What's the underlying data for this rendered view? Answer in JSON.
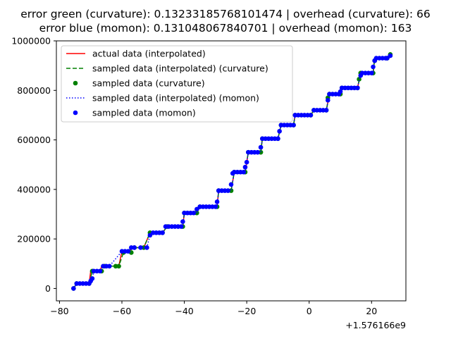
{
  "chart_data": {
    "type": "line",
    "title": "error green (curvature): 0.13233185768101474 | overhead (curvature): 66\nerror blue (momon): 0.131048067840701 | overhead (momon): 163",
    "title_lines": [
      "error green (curvature): 0.13233185768101474 | overhead (curvature): 66",
      "error blue (momon): 0.131048067840701 | overhead (momon): 163"
    ],
    "xlabel": "",
    "ylabel": "",
    "x_offset_label": "+1.576166e9",
    "xlim": [
      -81,
      31
    ],
    "ylim": [
      -50000,
      1000000
    ],
    "x_ticks": [
      -80,
      -60,
      -40,
      -20,
      0,
      20
    ],
    "x_tick_labels": [
      "−80",
      "−60",
      "−40",
      "−20",
      "0",
      "20"
    ],
    "y_ticks": [
      0,
      200000,
      400000,
      600000,
      800000,
      1000000
    ],
    "y_tick_labels": [
      "0",
      "200000",
      "400000",
      "600000",
      "800000",
      "1000000"
    ],
    "grid": false,
    "legend_position": "upper-left",
    "series": [
      {
        "name": "actual data (interpolated)",
        "style": "solid-line",
        "color": "#ff0000",
        "points": [
          [
            -75.5,
            0
          ],
          [
            -74.5,
            20000
          ],
          [
            -70.5,
            20000
          ],
          [
            -70,
            70000
          ],
          [
            -67,
            70000
          ],
          [
            -66.5,
            90000
          ],
          [
            -61,
            90000
          ],
          [
            -60,
            150000
          ],
          [
            -58,
            150000
          ],
          [
            -56,
            165000
          ],
          [
            -53,
            165000
          ],
          [
            -51,
            225000
          ],
          [
            -47,
            225000
          ],
          [
            -45.5,
            250000
          ],
          [
            -40.5,
            250000
          ],
          [
            -40,
            305000
          ],
          [
            -36,
            305000
          ],
          [
            -35,
            330000
          ],
          [
            -29.5,
            330000
          ],
          [
            -29,
            395000
          ],
          [
            -25,
            395000
          ],
          [
            -24,
            470000
          ],
          [
            -20.5,
            470000
          ],
          [
            -19.5,
            550000
          ],
          [
            -15.5,
            550000
          ],
          [
            -15,
            605000
          ],
          [
            -10,
            605000
          ],
          [
            -9,
            660000
          ],
          [
            -5,
            660000
          ],
          [
            -4.5,
            700000
          ],
          [
            0.5,
            700000
          ],
          [
            1.5,
            720000
          ],
          [
            5.5,
            720000
          ],
          [
            6.5,
            785000
          ],
          [
            10,
            785000
          ],
          [
            10.5,
            810000
          ],
          [
            15.5,
            810000
          ],
          [
            16.5,
            870000
          ],
          [
            20.5,
            870000
          ],
          [
            21,
            930000
          ],
          [
            25,
            930000
          ],
          [
            26,
            945000
          ]
        ]
      },
      {
        "name": "sampled data (interpolated) (curvature)",
        "style": "dashed-line",
        "color": "#008000",
        "points": [
          [
            -75.5,
            0
          ],
          [
            -74.5,
            20000
          ],
          [
            -70.5,
            20000
          ],
          [
            -69.5,
            70000
          ],
          [
            -66.5,
            70000
          ],
          [
            -65.5,
            90000
          ],
          [
            -61,
            90000
          ],
          [
            -59.5,
            145000
          ],
          [
            -58,
            145000
          ],
          [
            -57,
            165000
          ],
          [
            -53,
            165000
          ],
          [
            -51,
            225000
          ],
          [
            -47,
            225000
          ],
          [
            -45.5,
            250000
          ],
          [
            -40.5,
            250000
          ],
          [
            -40,
            305000
          ],
          [
            -36,
            305000
          ],
          [
            -35,
            330000
          ],
          [
            -29.5,
            330000
          ],
          [
            -29,
            395000
          ],
          [
            -25,
            395000
          ],
          [
            -24,
            470000
          ],
          [
            -20.5,
            470000
          ],
          [
            -19.5,
            550000
          ],
          [
            -15.5,
            550000
          ],
          [
            -15,
            605000
          ],
          [
            -10,
            605000
          ],
          [
            -9,
            660000
          ],
          [
            -5,
            660000
          ],
          [
            -4.5,
            700000
          ],
          [
            0.5,
            700000
          ],
          [
            1.5,
            720000
          ],
          [
            5.5,
            720000
          ],
          [
            6.5,
            785000
          ],
          [
            10,
            785000
          ],
          [
            10.5,
            810000
          ],
          [
            15.5,
            810000
          ],
          [
            16.5,
            870000
          ],
          [
            20.5,
            870000
          ],
          [
            21,
            930000
          ],
          [
            25,
            930000
          ],
          [
            26,
            945000
          ]
        ]
      },
      {
        "name": "sampled data (curvature)",
        "style": "markers",
        "color": "#008000",
        "points": [
          [
            -75.5,
            0
          ],
          [
            -74.5,
            20000
          ],
          [
            -70.5,
            20000
          ],
          [
            -69.5,
            70000
          ],
          [
            -66.5,
            70000
          ],
          [
            -65.5,
            90000
          ],
          [
            -62,
            90000
          ],
          [
            -61,
            90000
          ],
          [
            -59.5,
            145000
          ],
          [
            -57,
            145000
          ],
          [
            -56,
            165000
          ],
          [
            -53,
            165000
          ],
          [
            -51,
            225000
          ],
          [
            -47,
            225000
          ],
          [
            -45.5,
            250000
          ],
          [
            -40.5,
            250000
          ],
          [
            -40,
            305000
          ],
          [
            -36,
            305000
          ],
          [
            -35,
            330000
          ],
          [
            -29.5,
            330000
          ],
          [
            -29,
            395000
          ],
          [
            -25,
            395000
          ],
          [
            -24,
            470000
          ],
          [
            -20.5,
            470000
          ],
          [
            -19.5,
            550000
          ],
          [
            -15.5,
            550000
          ],
          [
            -15,
            605000
          ],
          [
            -10,
            605000
          ],
          [
            -9,
            660000
          ],
          [
            -5,
            660000
          ],
          [
            -4.5,
            700000
          ],
          [
            0.5,
            700000
          ],
          [
            1.5,
            720000
          ],
          [
            5.5,
            720000
          ],
          [
            6,
            770000
          ],
          [
            6.5,
            785000
          ],
          [
            10,
            785000
          ],
          [
            10.5,
            810000
          ],
          [
            15.5,
            810000
          ],
          [
            16,
            845000
          ],
          [
            16.5,
            870000
          ],
          [
            20.5,
            870000
          ],
          [
            21,
            920000
          ],
          [
            25,
            930000
          ],
          [
            26,
            945000
          ]
        ]
      },
      {
        "name": "sampled data (interpolated) (momon)",
        "style": "dotted-line",
        "color": "#0000ff",
        "points": [
          [
            -75.5,
            0
          ],
          [
            -74.5,
            20000
          ],
          [
            -70.5,
            20000
          ],
          [
            -69.5,
            40000
          ],
          [
            -69,
            70000
          ],
          [
            -67,
            70000
          ],
          [
            -66,
            90000
          ],
          [
            -64,
            90000
          ],
          [
            -60,
            150000
          ],
          [
            -58,
            150000
          ],
          [
            -57,
            165000
          ],
          [
            -52,
            165000
          ],
          [
            -51,
            215000
          ],
          [
            -50,
            225000
          ],
          [
            -47,
            225000
          ],
          [
            -45.5,
            250000
          ],
          [
            -40.5,
            250000
          ],
          [
            -40,
            305000
          ],
          [
            -36,
            305000
          ],
          [
            -35,
            330000
          ],
          [
            -29.5,
            330000
          ],
          [
            -29,
            395000
          ],
          [
            -25,
            395000
          ],
          [
            -24,
            470000
          ],
          [
            -20.5,
            470000
          ],
          [
            -19.5,
            550000
          ],
          [
            -15.5,
            550000
          ],
          [
            -15,
            605000
          ],
          [
            -10,
            605000
          ],
          [
            -9,
            660000
          ],
          [
            -5,
            660000
          ],
          [
            -4.5,
            700000
          ],
          [
            0.5,
            700000
          ],
          [
            1.5,
            720000
          ],
          [
            5.5,
            720000
          ],
          [
            6.5,
            785000
          ],
          [
            10,
            785000
          ],
          [
            10.5,
            810000
          ],
          [
            15.5,
            810000
          ],
          [
            16.5,
            870000
          ],
          [
            20.5,
            870000
          ],
          [
            21,
            930000
          ],
          [
            25,
            930000
          ],
          [
            26,
            945000
          ]
        ]
      },
      {
        "name": "sampled data (momon)",
        "style": "markers",
        "color": "#0000ff",
        "points": [
          [
            -75.5,
            0
          ],
          [
            -74.5,
            20000
          ],
          [
            -73.5,
            20000
          ],
          [
            -72.5,
            20000
          ],
          [
            -71.5,
            20000
          ],
          [
            -70.5,
            20000
          ],
          [
            -70,
            30000
          ],
          [
            -69.5,
            40000
          ],
          [
            -69,
            70000
          ],
          [
            -68,
            70000
          ],
          [
            -67,
            70000
          ],
          [
            -66,
            90000
          ],
          [
            -65,
            90000
          ],
          [
            -64,
            90000
          ],
          [
            -60,
            150000
          ],
          [
            -59,
            150000
          ],
          [
            -58,
            150000
          ],
          [
            -57,
            165000
          ],
          [
            -56,
            165000
          ],
          [
            -54,
            165000
          ],
          [
            -52,
            165000
          ],
          [
            -51,
            215000
          ],
          [
            -50,
            225000
          ],
          [
            -49,
            225000
          ],
          [
            -48,
            225000
          ],
          [
            -47,
            225000
          ],
          [
            -46,
            250000
          ],
          [
            -45,
            250000
          ],
          [
            -44,
            250000
          ],
          [
            -43,
            250000
          ],
          [
            -42,
            250000
          ],
          [
            -41,
            250000
          ],
          [
            -40.5,
            270000
          ],
          [
            -40,
            305000
          ],
          [
            -39,
            305000
          ],
          [
            -38,
            305000
          ],
          [
            -37,
            305000
          ],
          [
            -36,
            320000
          ],
          [
            -35,
            330000
          ],
          [
            -34,
            330000
          ],
          [
            -33,
            330000
          ],
          [
            -32,
            330000
          ],
          [
            -31,
            330000
          ],
          [
            -30,
            330000
          ],
          [
            -29.5,
            350000
          ],
          [
            -29,
            395000
          ],
          [
            -28,
            395000
          ],
          [
            -27,
            395000
          ],
          [
            -26,
            395000
          ],
          [
            -25,
            420000
          ],
          [
            -24.5,
            465000
          ],
          [
            -24,
            470000
          ],
          [
            -23,
            470000
          ],
          [
            -22,
            470000
          ],
          [
            -21,
            470000
          ],
          [
            -20.5,
            490000
          ],
          [
            -20,
            510000
          ],
          [
            -19.5,
            550000
          ],
          [
            -18.5,
            550000
          ],
          [
            -17.5,
            550000
          ],
          [
            -16.5,
            550000
          ],
          [
            -15.5,
            570000
          ],
          [
            -15,
            605000
          ],
          [
            -14,
            605000
          ],
          [
            -13,
            605000
          ],
          [
            -12,
            605000
          ],
          [
            -11,
            605000
          ],
          [
            -10,
            605000
          ],
          [
            -9.5,
            635000
          ],
          [
            -9,
            660000
          ],
          [
            -8,
            660000
          ],
          [
            -7,
            660000
          ],
          [
            -6,
            660000
          ],
          [
            -5,
            660000
          ],
          [
            -4.5,
            700000
          ],
          [
            -3.5,
            700000
          ],
          [
            -2.5,
            700000
          ],
          [
            -1.5,
            700000
          ],
          [
            -0.5,
            700000
          ],
          [
            0.5,
            700000
          ],
          [
            1.5,
            720000
          ],
          [
            2.5,
            720000
          ],
          [
            3.5,
            720000
          ],
          [
            4.5,
            720000
          ],
          [
            5.5,
            720000
          ],
          [
            6,
            760000
          ],
          [
            6.5,
            785000
          ],
          [
            7.5,
            785000
          ],
          [
            8.5,
            785000
          ],
          [
            9.5,
            785000
          ],
          [
            10,
            795000
          ],
          [
            10.5,
            810000
          ],
          [
            11.5,
            810000
          ],
          [
            12.5,
            810000
          ],
          [
            13.5,
            810000
          ],
          [
            14.5,
            810000
          ],
          [
            15.5,
            810000
          ],
          [
            16.5,
            860000
          ],
          [
            17,
            870000
          ],
          [
            18,
            870000
          ],
          [
            19,
            870000
          ],
          [
            20,
            870000
          ],
          [
            20.5,
            895000
          ],
          [
            21,
            920000
          ],
          [
            21.5,
            930000
          ],
          [
            22.5,
            930000
          ],
          [
            23.5,
            930000
          ],
          [
            24.5,
            930000
          ],
          [
            25,
            930000
          ],
          [
            26,
            940000
          ]
        ]
      }
    ]
  }
}
